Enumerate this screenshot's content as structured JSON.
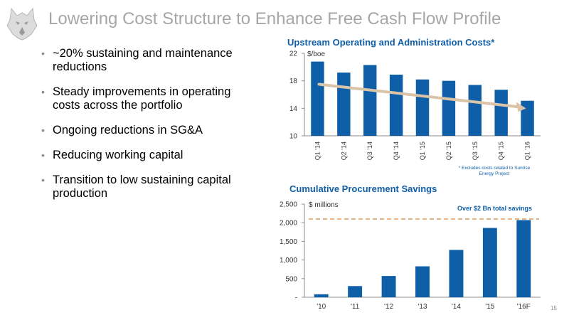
{
  "header": {
    "title": "Lowering Cost Structure to Enhance Free Cash Flow Profile"
  },
  "bullets": [
    "~20% sustaining and maintenance reductions",
    "Steady improvements in operating costs across the portfolio",
    "Ongoing reductions in SG&A",
    "Reducing working capital",
    "Transition to low sustaining capital production"
  ],
  "bullet_glyph": "•",
  "page_number": "15",
  "colors": {
    "bar": "#0f5ea8",
    "trend_arrow": "#d9c4a8",
    "reference_line": "#e8b48a",
    "title_gray": "#a6a6a6"
  },
  "chart_data": [
    {
      "type": "bar",
      "title": "Upstream Operating and Administration Costs*",
      "unit_label": "$/boe",
      "categories": [
        "Q1 '14",
        "Q2 '14",
        "Q3 '14",
        "Q4 '14",
        "Q1 '15",
        "Q2 '15",
        "Q3 '15",
        "Q4 '15",
        "Q1 '16"
      ],
      "values": [
        20.8,
        19.2,
        20.3,
        18.9,
        18.2,
        18.0,
        17.4,
        16.7,
        15.1
      ],
      "ylim": [
        10,
        22
      ],
      "yticks": [
        10,
        14,
        18,
        22
      ],
      "ytick_labels": [
        "10",
        "14",
        "18",
        "22"
      ],
      "trend_arrow": {
        "from_value": 17.5,
        "to_value": 14.0
      },
      "footnote": "* Excludes costs related to Sunrise Energy Project",
      "grid": false
    },
    {
      "type": "bar",
      "title": "Cumulative Procurement Savings",
      "unit_label": "$ millions",
      "categories": [
        "'10",
        "'11",
        "'12",
        "'13",
        "'14",
        "'15",
        "'16F"
      ],
      "values": [
        80,
        300,
        570,
        830,
        1270,
        1860,
        2070
      ],
      "ylim": [
        0,
        2500
      ],
      "yticks": [
        0,
        500,
        1000,
        1500,
        2000,
        2500
      ],
      "ytick_labels": [
        "-",
        "500",
        "1,000",
        "1,500",
        "2,000",
        "2,500"
      ],
      "reference_line": {
        "value": 2100,
        "label": "Over $2 Bn total savings"
      },
      "grid": false
    }
  ]
}
